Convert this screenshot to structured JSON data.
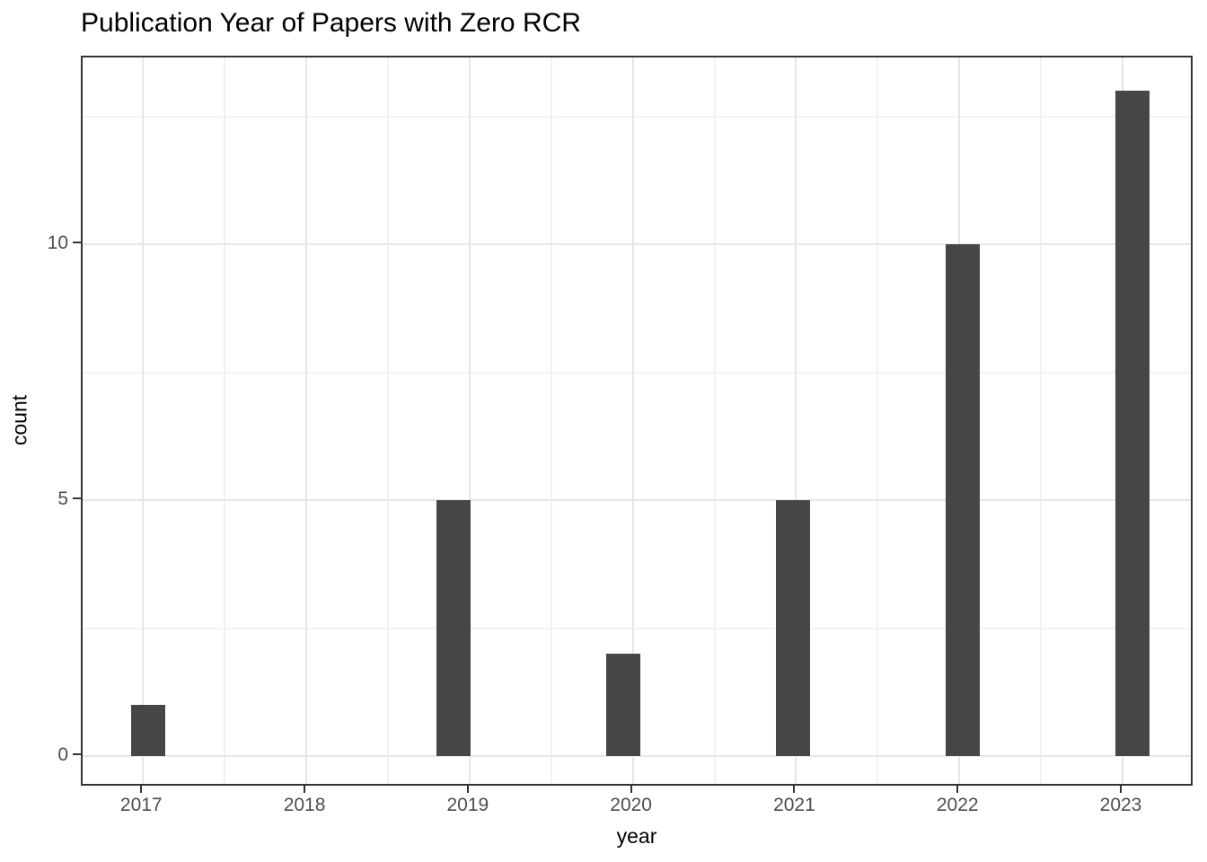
{
  "chart_data": {
    "type": "bar",
    "subtype": "histogram",
    "title": "Publication Year of Papers with Zero RCR",
    "xlabel": "year",
    "ylabel": "count",
    "categories": [
      "2017",
      "2018",
      "2019",
      "2020",
      "2021",
      "2022",
      "2023"
    ],
    "values": [
      1,
      0,
      5,
      2,
      5,
      10,
      13
    ],
    "bars": [
      {
        "x": 2017.03,
        "count": 1
      },
      {
        "x": 2018.9,
        "count": 5
      },
      {
        "x": 2019.94,
        "count": 2
      },
      {
        "x": 2020.98,
        "count": 5
      },
      {
        "x": 2022.02,
        "count": 10
      },
      {
        "x": 2023.06,
        "count": 13
      }
    ],
    "bar_width": 0.21,
    "xlim": [
      2016.63,
      2023.44
    ],
    "ylim": [
      -0.61,
      13.65
    ],
    "x_ticks": [
      {
        "value": 2017,
        "label": "2017"
      },
      {
        "value": 2018,
        "label": "2018"
      },
      {
        "value": 2019,
        "label": "2019"
      },
      {
        "value": 2020,
        "label": "2020"
      },
      {
        "value": 2021,
        "label": "2021"
      },
      {
        "value": 2022,
        "label": "2022"
      },
      {
        "value": 2023,
        "label": "2023"
      }
    ],
    "y_ticks": [
      {
        "value": 0,
        "label": "0"
      },
      {
        "value": 5,
        "label": "5"
      },
      {
        "value": 10,
        "label": "10"
      }
    ],
    "x_minor_ticks": [
      2017.5,
      2018.5,
      2019.5,
      2020.5,
      2021.5,
      2022.5
    ],
    "y_minor_ticks": [
      2.5,
      7.5,
      12.5
    ],
    "grid": true,
    "legend_position": "none",
    "colors": {
      "bar": "#464646",
      "grid_major": "#E6E6E6",
      "grid_minor": "#F2F2F2",
      "panel_border": "#333333",
      "tick_mark": "#333333",
      "tick_label": "#4D4D4D",
      "axis_title": "#000000",
      "title": "#000000",
      "background": "#FFFFFF"
    }
  }
}
